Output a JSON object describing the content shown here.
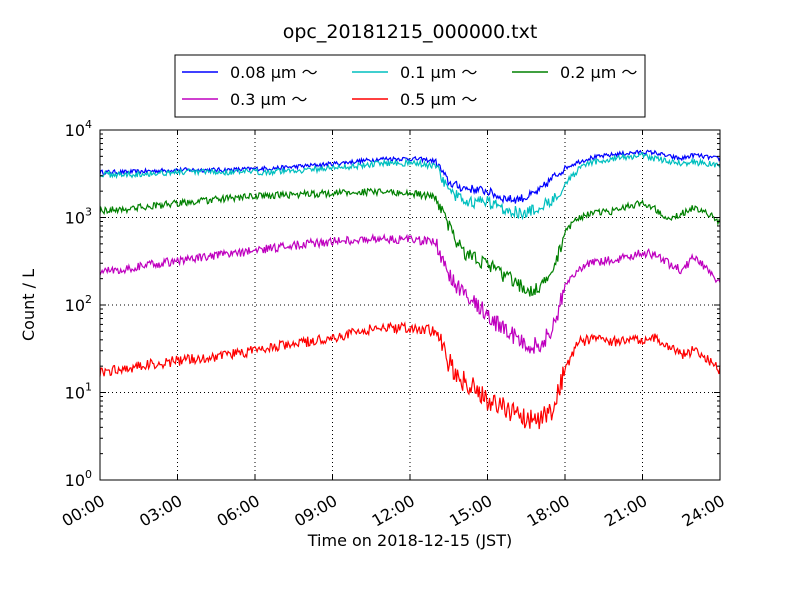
{
  "chart_data": {
    "type": "line",
    "title": "opc_20181215_000000.txt",
    "xlabel": "Time on 2018-12-15 (JST)",
    "ylabel": "Count / L",
    "yscale": "log",
    "xlim": [
      "2018-12-15 00:00",
      "2018-12-16 00:00"
    ],
    "ylim": [
      1,
      10000
    ],
    "grid": true,
    "legend_position": "top-center",
    "x_tick_labels": [
      "00:00",
      "03:00",
      "06:00",
      "09:00",
      "12:00",
      "15:00",
      "18:00",
      "21:00",
      "24:00"
    ],
    "y_tick_labels": [
      {
        "base": "10",
        "exp": "0",
        "value": 1
      },
      {
        "base": "10",
        "exp": "1",
        "value": 10
      },
      {
        "base": "10",
        "exp": "2",
        "value": 100
      },
      {
        "base": "10",
        "exp": "3",
        "value": 1000
      },
      {
        "base": "10",
        "exp": "4",
        "value": 10000
      }
    ],
    "x": [
      "00:00",
      "01:00",
      "02:00",
      "03:00",
      "04:00",
      "05:00",
      "06:00",
      "07:00",
      "08:00",
      "09:00",
      "10:00",
      "11:00",
      "12:00",
      "12:30",
      "13:00",
      "13:30",
      "14:00",
      "14:30",
      "15:00",
      "15:30",
      "16:00",
      "16:30",
      "17:00",
      "17:30",
      "18:00",
      "18:30",
      "19:00",
      "20:00",
      "21:00",
      "21:30",
      "22:00",
      "22:30",
      "23:00",
      "23:30",
      "24:00"
    ],
    "series": [
      {
        "name": "0.08 μm ～",
        "color": "#0000ff",
        "values": [
          3300,
          3300,
          3400,
          3500,
          3500,
          3500,
          3600,
          3700,
          3900,
          4100,
          4400,
          4700,
          4700,
          4600,
          4400,
          2500,
          2200,
          2100,
          2000,
          1700,
          1600,
          1700,
          2000,
          2800,
          3700,
          4300,
          4800,
          5300,
          5600,
          5500,
          5000,
          4700,
          5200,
          4900,
          4700
        ]
      },
      {
        "name": "0.1 μm ～",
        "color": "#00bfbf",
        "values": [
          3100,
          3100,
          3200,
          3300,
          3300,
          3300,
          3300,
          3400,
          3500,
          3700,
          3900,
          4200,
          4200,
          4100,
          3800,
          2000,
          1600,
          1500,
          1500,
          1300,
          1200,
          1100,
          1300,
          1600,
          2400,
          3500,
          4200,
          4800,
          5100,
          4700,
          4400,
          4200,
          4300,
          4100,
          4000
        ]
      },
      {
        "name": "0.2 μm ～",
        "color": "#008000",
        "values": [
          1200,
          1250,
          1350,
          1450,
          1550,
          1650,
          1750,
          1800,
          1850,
          1900,
          1950,
          1950,
          1900,
          1800,
          1700,
          800,
          420,
          340,
          300,
          230,
          190,
          150,
          150,
          220,
          700,
          1000,
          1100,
          1200,
          1500,
          1250,
          1000,
          1100,
          1300,
          1100,
          900
        ]
      },
      {
        "name": "0.3 μm ～",
        "color": "#bf00bf",
        "values": [
          240,
          260,
          290,
          320,
          350,
          380,
          420,
          460,
          500,
          530,
          560,
          570,
          560,
          540,
          520,
          220,
          140,
          110,
          80,
          55,
          45,
          35,
          35,
          50,
          160,
          260,
          300,
          330,
          400,
          370,
          300,
          250,
          350,
          260,
          175
        ]
      },
      {
        "name": "0.5 μm ～",
        "color": "#ff0000",
        "values": [
          17,
          19,
          21,
          23,
          25,
          27,
          30,
          34,
          38,
          42,
          50,
          55,
          55,
          53,
          50,
          22,
          14,
          11,
          8,
          7,
          6,
          5,
          5,
          6,
          18,
          38,
          40,
          38,
          40,
          42,
          33,
          27,
          30,
          25,
          18
        ]
      }
    ]
  }
}
